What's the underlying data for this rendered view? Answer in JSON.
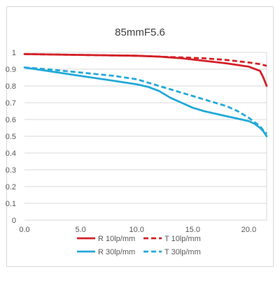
{
  "chart_data": {
    "type": "line",
    "title": "85mmF5.6",
    "xlabel": "",
    "ylabel": "",
    "xlim": [
      0,
      21.6
    ],
    "ylim": [
      0,
      1
    ],
    "x_ticks": [
      "0.0",
      "5.0",
      "10.0",
      "15.0",
      "20.0"
    ],
    "x_tick_values": [
      0,
      5,
      10,
      15,
      20
    ],
    "y_ticks": [
      "0",
      "0.1",
      "0.2",
      "0.3",
      "0.4",
      "0.5",
      "0.6",
      "0.7",
      "0.8",
      "0.9",
      "1"
    ],
    "y_tick_values": [
      0,
      0.1,
      0.2,
      0.3,
      0.4,
      0.5,
      0.6,
      0.7,
      0.8,
      0.9,
      1
    ],
    "grid": "horizontal",
    "legend_position": "bottom",
    "series": [
      {
        "name": "R 10lp/mm",
        "color": "#d42027",
        "dash": "solid",
        "points": [
          [
            0,
            0.99
          ],
          [
            5,
            0.985
          ],
          [
            10,
            0.98
          ],
          [
            12,
            0.975
          ],
          [
            14,
            0.965
          ],
          [
            16,
            0.95
          ],
          [
            18,
            0.935
          ],
          [
            20,
            0.915
          ],
          [
            21,
            0.89
          ],
          [
            21.3,
            0.85
          ],
          [
            21.6,
            0.8
          ]
        ]
      },
      {
        "name": "T 10lp/mm",
        "color": "#d42027",
        "dash": "dashed",
        "points": [
          [
            0,
            0.99
          ],
          [
            5,
            0.985
          ],
          [
            10,
            0.98
          ],
          [
            12,
            0.975
          ],
          [
            14,
            0.97
          ],
          [
            16,
            0.965
          ],
          [
            18,
            0.955
          ],
          [
            20,
            0.94
          ],
          [
            21,
            0.93
          ],
          [
            21.6,
            0.92
          ]
        ]
      },
      {
        "name": "R 30lp/mm",
        "color": "#23a9d9",
        "dash": "solid",
        "points": [
          [
            0,
            0.91
          ],
          [
            2,
            0.89
          ],
          [
            5,
            0.86
          ],
          [
            8,
            0.83
          ],
          [
            10,
            0.81
          ],
          [
            11,
            0.795
          ],
          [
            12,
            0.77
          ],
          [
            13,
            0.73
          ],
          [
            14,
            0.7
          ],
          [
            15,
            0.67
          ],
          [
            16,
            0.65
          ],
          [
            17,
            0.635
          ],
          [
            18,
            0.62
          ],
          [
            19,
            0.605
          ],
          [
            20,
            0.59
          ],
          [
            20.5,
            0.575
          ],
          [
            21,
            0.55
          ],
          [
            21.3,
            0.53
          ],
          [
            21.6,
            0.5
          ]
        ]
      },
      {
        "name": "T 30lp/mm",
        "color": "#23a9d9",
        "dash": "dashed",
        "points": [
          [
            0,
            0.91
          ],
          [
            2,
            0.9
          ],
          [
            5,
            0.88
          ],
          [
            8,
            0.86
          ],
          [
            10,
            0.84
          ],
          [
            12,
            0.8
          ],
          [
            14,
            0.76
          ],
          [
            15,
            0.74
          ],
          [
            16,
            0.72
          ],
          [
            17,
            0.7
          ],
          [
            18,
            0.68
          ],
          [
            19,
            0.65
          ],
          [
            20,
            0.61
          ],
          [
            20.5,
            0.585
          ],
          [
            21,
            0.56
          ],
          [
            21.3,
            0.535
          ],
          [
            21.6,
            0.515
          ]
        ]
      }
    ]
  }
}
